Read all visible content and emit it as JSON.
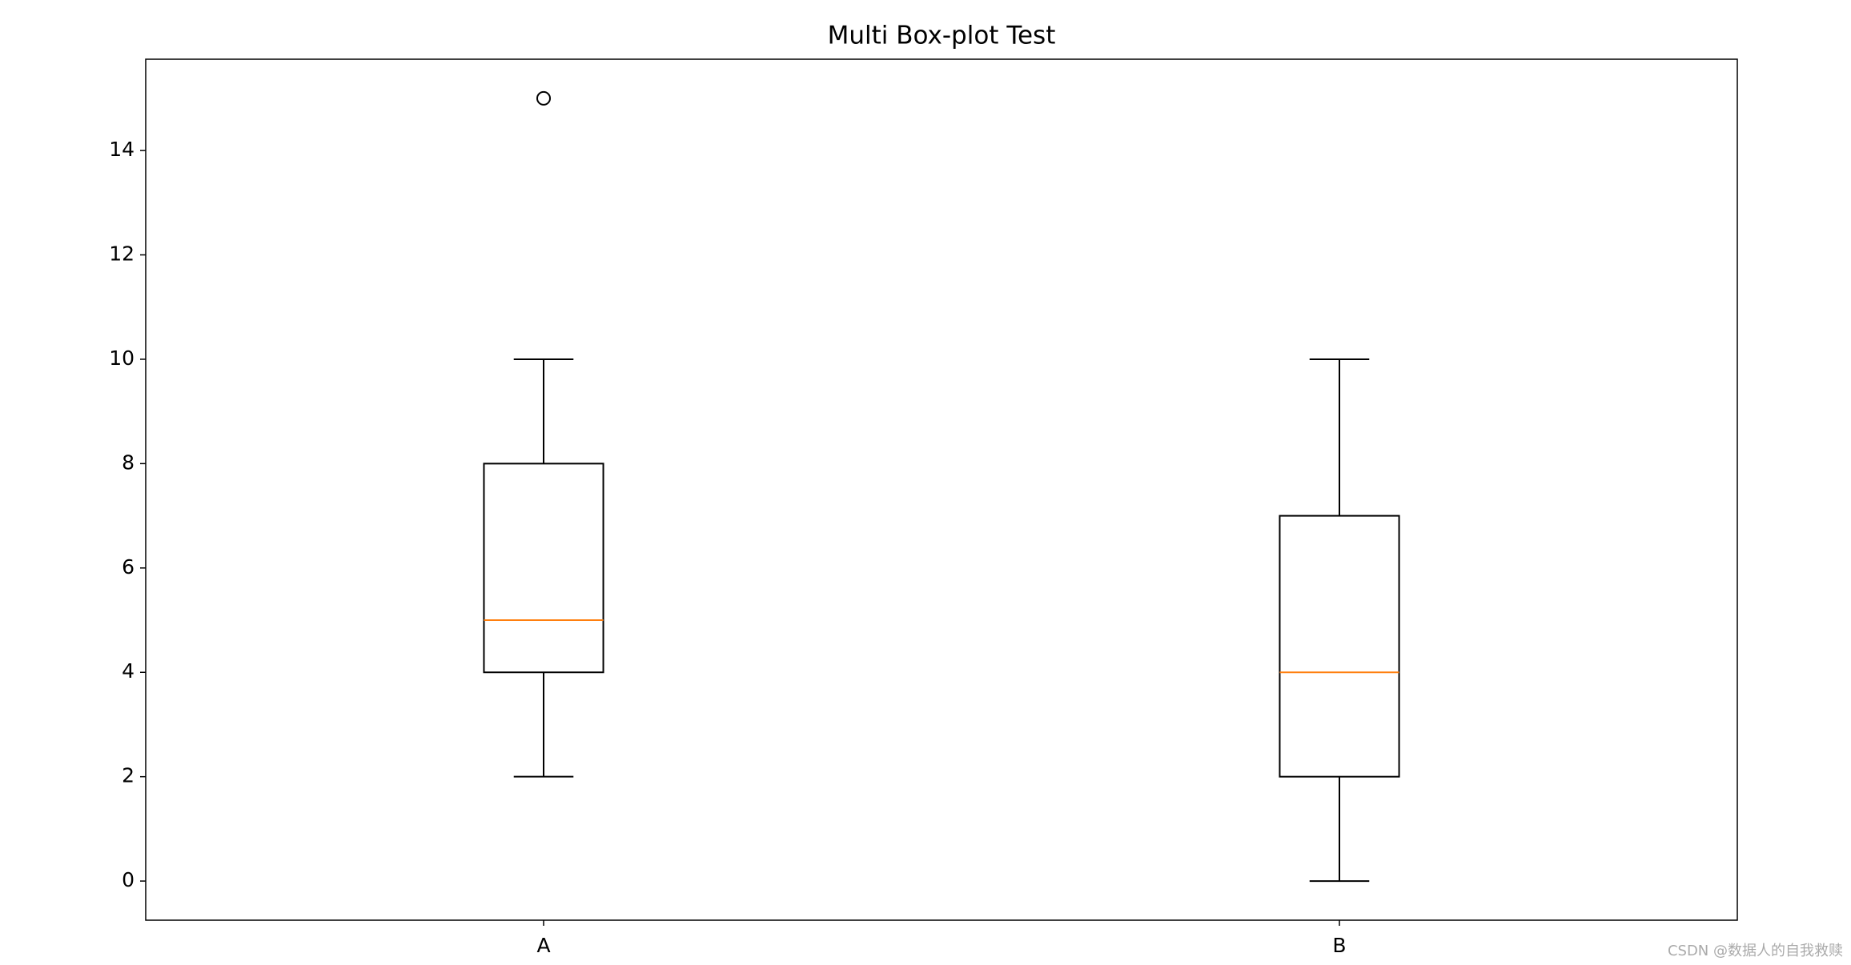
{
  "chart_data": {
    "type": "box",
    "title": "Multi Box-plot Test",
    "categories": [
      "A",
      "B"
    ],
    "whisker_low": [
      2,
      0
    ],
    "q1": [
      4,
      2
    ],
    "median": [
      5,
      4
    ],
    "q3": [
      8,
      7
    ],
    "whisker_high": [
      10,
      10
    ],
    "outliers": [
      {
        "group": "A",
        "value": 15
      }
    ],
    "box_color": "#000000",
    "median_color": "#ff7f0e",
    "ylim": [
      -0.75,
      15.75
    ],
    "yticks": [
      0,
      2,
      4,
      6,
      8,
      10,
      12,
      14
    ],
    "xlim": [
      0.5,
      2.5
    ],
    "grid": false
  },
  "watermark": "CSDN @数据人的自我救赎"
}
